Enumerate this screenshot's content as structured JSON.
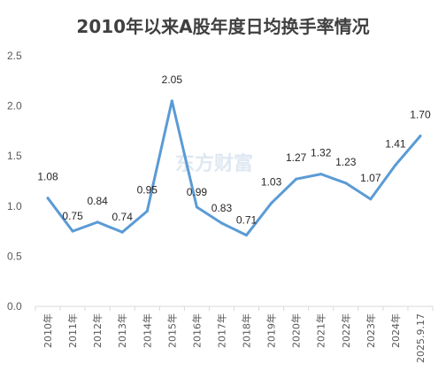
{
  "chart_data": {
    "type": "line",
    "title": "2010年以来A股年度日均换手率情况",
    "categories": [
      "2010年",
      "2011年",
      "2012年",
      "2013年",
      "2014年",
      "2015年",
      "2016年",
      "2017年",
      "2018年",
      "2019年",
      "2020年",
      "2021年",
      "2022年",
      "2023年",
      "2024年",
      "2025.9.17"
    ],
    "series": [
      {
        "values": [
          1.08,
          0.75,
          0.84,
          0.74,
          0.95,
          2.05,
          0.99,
          0.83,
          0.71,
          1.03,
          1.27,
          1.32,
          1.23,
          1.07,
          1.41,
          1.7
        ]
      }
    ],
    "data_labels": [
      "1.08",
      "0.75",
      "0.84",
      "0.74",
      "0.95",
      "2.05",
      "0.99",
      "0.83",
      "0.71",
      "1.03",
      "1.27",
      "1.32",
      "1.23",
      "1.07",
      "1.41",
      "1.70"
    ],
    "yticks": [
      "0.0",
      "0.5",
      "1.0",
      "1.5",
      "2.0",
      "2.5"
    ],
    "ylim": [
      0,
      2.5
    ],
    "line_color": "#5b9bd5",
    "grid": false,
    "watermark": "东方财富"
  }
}
